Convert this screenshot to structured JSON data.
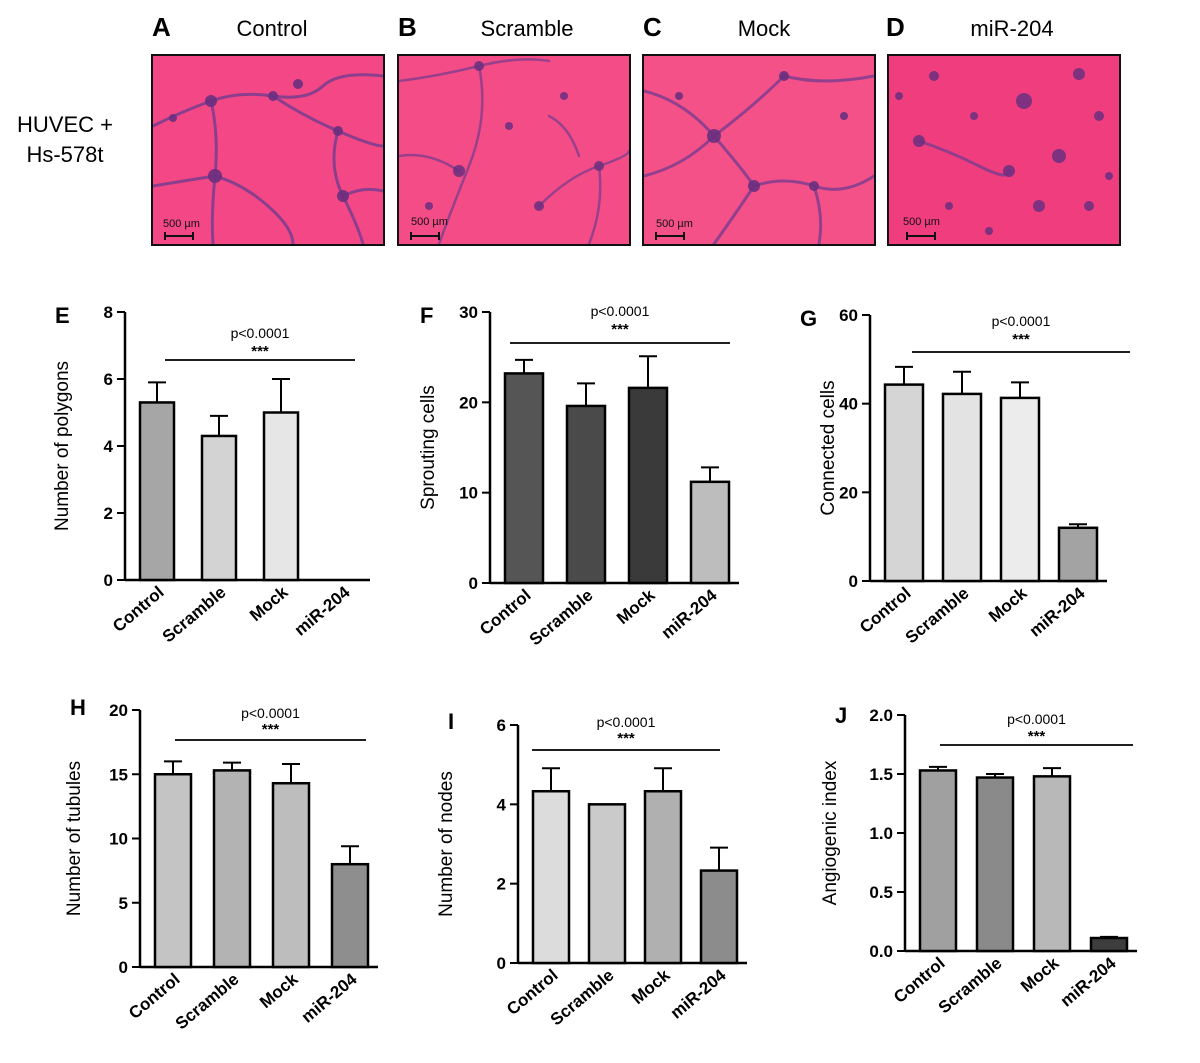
{
  "row_label": [
    "HUVEC +",
    "Hs-578t"
  ],
  "images": [
    {
      "letter": "A",
      "title": "Control",
      "scale": "500 µm"
    },
    {
      "letter": "B",
      "title": "Scramble",
      "scale": "500 µm"
    },
    {
      "letter": "C",
      "title": "Mock",
      "scale": "500 µm"
    },
    {
      "letter": "D",
      "title": "miR-204",
      "scale": "500 µm"
    }
  ],
  "colors": {
    "tissue_pink": "#f2407f",
    "cell_purple": "#7a3d8f"
  },
  "chart_data": [
    {
      "panel": "E",
      "type": "bar",
      "categories": [
        "Control",
        "Scramble",
        "Mock",
        "miR-204"
      ],
      "values": [
        5.3,
        4.3,
        5.0,
        0
      ],
      "errors": [
        0.6,
        0.6,
        1.0,
        0
      ],
      "ylabel": "Number of polygons",
      "ylim": [
        0,
        8
      ],
      "yticks": [
        0,
        2,
        4,
        6,
        8
      ],
      "pvalue": "p<0.0001",
      "stars": "***",
      "bar_colors": [
        "#a6a6a6",
        "#d3d3d3",
        "#e6e6e6",
        "#ffffff"
      ]
    },
    {
      "panel": "F",
      "type": "bar",
      "categories": [
        "Control",
        "Scramble",
        "Mock",
        "miR-204"
      ],
      "values": [
        23.2,
        19.6,
        21.6,
        11.2
      ],
      "errors": [
        1.5,
        2.5,
        3.5,
        1.6
      ],
      "ylabel": "Sprouting cells",
      "ylim": [
        0,
        30
      ],
      "yticks": [
        0,
        10,
        20,
        30
      ],
      "pvalue": "p<0.0001",
      "stars": "***",
      "bar_colors": [
        "#555555",
        "#4a4a4a",
        "#3a3a3a",
        "#bdbdbd"
      ]
    },
    {
      "panel": "G",
      "type": "bar",
      "categories": [
        "Control",
        "Scramble",
        "Mock",
        "miR-204"
      ],
      "values": [
        44.3,
        42.2,
        41.3,
        12.0
      ],
      "errors": [
        4.0,
        5.0,
        3.5,
        0.8
      ],
      "ylabel": "Connected cells",
      "ylim": [
        0,
        60
      ],
      "yticks": [
        0,
        20,
        40,
        60
      ],
      "pvalue": "p<0.0001",
      "stars": "***",
      "bar_colors": [
        "#d5d5d5",
        "#e3e3e3",
        "#ececec",
        "#a3a3a3"
      ]
    },
    {
      "panel": "H",
      "type": "bar",
      "categories": [
        "Control",
        "Scramble",
        "Mock",
        "miR-204"
      ],
      "values": [
        15.0,
        15.3,
        14.3,
        8.0
      ],
      "errors": [
        1.0,
        0.6,
        1.5,
        1.4
      ],
      "ylabel": "Number of tubules",
      "ylim": [
        0,
        20
      ],
      "yticks": [
        0,
        5,
        10,
        15,
        20
      ],
      "pvalue": "p<0.0001",
      "stars": "***",
      "bar_colors": [
        "#c4c4c4",
        "#b3b3b3",
        "#bdbdbd",
        "#8e8e8e"
      ]
    },
    {
      "panel": "I",
      "type": "bar",
      "categories": [
        "Control",
        "Scramble",
        "Mock",
        "miR-204"
      ],
      "values": [
        4.33,
        4.0,
        4.33,
        2.33
      ],
      "errors": [
        0.58,
        0,
        0.58,
        0.58
      ],
      "ylabel": "Number of nodes",
      "ylim": [
        0,
        6
      ],
      "yticks": [
        0,
        2,
        4,
        6
      ],
      "pvalue": "p<0.0001",
      "stars": "***",
      "bar_colors": [
        "#dcdcdc",
        "#cacaca",
        "#b0b0b0",
        "#8c8c8c"
      ]
    },
    {
      "panel": "J",
      "type": "bar",
      "categories": [
        "Control",
        "Scramble",
        "Mock",
        "miR-204"
      ],
      "values": [
        1.53,
        1.47,
        1.48,
        0.11
      ],
      "errors": [
        0.03,
        0.03,
        0.07,
        0.01
      ],
      "ylabel": "Angiogenic index",
      "ylim": [
        0,
        2.0
      ],
      "yticks": [
        "0.0",
        "0.5",
        "1.0",
        "1.5",
        "2.0"
      ],
      "pvalue": "p<0.0001",
      "stars": "***",
      "bar_colors": [
        "#a0a0a0",
        "#8a8a8a",
        "#b8b8b8",
        "#3d3d3d"
      ]
    }
  ]
}
